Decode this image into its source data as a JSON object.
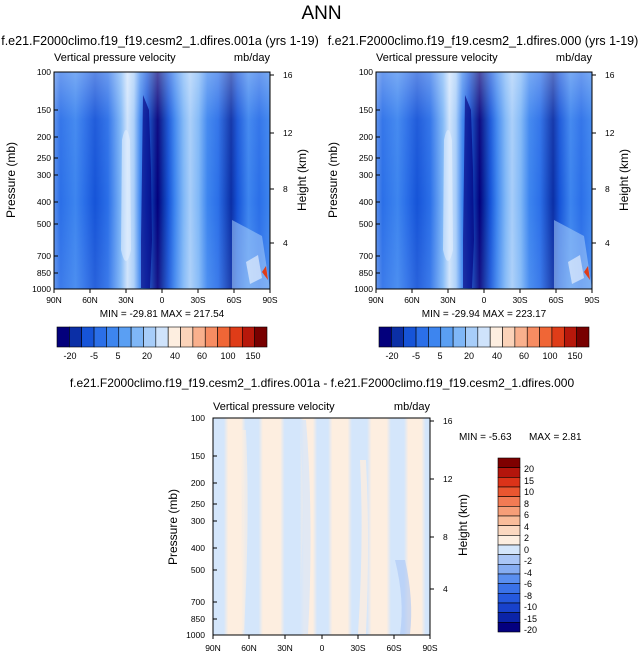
{
  "figure": {
    "title": "ANN"
  },
  "colors": {
    "ramp_top": [
      "#03007c",
      "#0b2fa6",
      "#1654d8",
      "#2b6fe8",
      "#3d85ef",
      "#5a9ff3",
      "#7fb7f7",
      "#a7cdf9",
      "#cfe3fb",
      "#fdeee0",
      "#fbd3b9",
      "#f9b08d",
      "#f78c62",
      "#f06636",
      "#df3c18",
      "#b7180b",
      "#780000"
    ],
    "ramp_diff": [
      "#04007f",
      "#0b24a8",
      "#1842cc",
      "#2559de",
      "#3a72e8",
      "#5a8ff0",
      "#86adf2",
      "#aac6f6",
      "#d4e6fb",
      "#fdeee0",
      "#fbd8c0",
      "#f9bc9a",
      "#f69e78",
      "#f27b54",
      "#ea5630",
      "#db3319",
      "#b3150c",
      "#7e0000"
    ]
  },
  "chart_data": [
    {
      "type": "heatmap",
      "name": "panel-left",
      "title": "f.e21.F2000climo.f19_f19.cesm2_1.dfires.001a (yrs 1-19)",
      "subtitle_left": "Vertical pressure velocity",
      "subtitle_right": "mb/day",
      "ylabel": "Pressure (mb)",
      "y2label": "Height (km)",
      "x_ticks": [
        "90N",
        "60N",
        "30N",
        "0",
        "30S",
        "60S",
        "90S"
      ],
      "y_ticks": [
        100,
        150,
        200,
        250,
        300,
        400,
        500,
        700,
        850,
        1000
      ],
      "y2_ticks": [
        4,
        8,
        12,
        16
      ],
      "min_max_text": "MIN = -29.81   MAX = 217.54",
      "colorbar_labels": [
        "-20",
        "-5",
        "5",
        "20",
        "40",
        "60",
        "100",
        "150"
      ]
    },
    {
      "type": "heatmap",
      "name": "panel-right",
      "title": "f.e21.F2000climo.f19_f19.cesm2_1.dfires.000 (yrs 1-19)",
      "subtitle_left": "Vertical pressure velocity",
      "subtitle_right": "mb/day",
      "ylabel": "Pressure (mb)",
      "y2label": "Height (km)",
      "x_ticks": [
        "90N",
        "60N",
        "30N",
        "0",
        "30S",
        "60S",
        "90S"
      ],
      "y_ticks": [
        100,
        150,
        200,
        250,
        300,
        400,
        500,
        700,
        850,
        1000
      ],
      "y2_ticks": [
        4,
        8,
        12,
        16
      ],
      "min_max_text": "MIN = -29.94   MAX = 223.17",
      "colorbar_labels": [
        "-20",
        "-5",
        "5",
        "20",
        "40",
        "60",
        "100",
        "150"
      ]
    },
    {
      "type": "heatmap",
      "name": "panel-diff",
      "title": "f.e21.F2000climo.f19_f19.cesm2_1.dfires.001a - f.e21.F2000climo.f19_f19.cesm2_1.dfires.000",
      "subtitle_left": "Vertical pressure velocity",
      "subtitle_right": "mb/day",
      "ylabel": "Pressure (mb)",
      "y2label": "Height (km)",
      "x_ticks": [
        "90N",
        "60N",
        "30N",
        "0",
        "30S",
        "60S",
        "90S"
      ],
      "y_ticks": [
        100,
        150,
        200,
        250,
        300,
        400,
        500,
        700,
        850,
        1000
      ],
      "y2_ticks": [
        4,
        8,
        12,
        16
      ],
      "min_text": "MIN =  -5.63",
      "max_text": "MAX =   2.81",
      "colorbar_labels": [
        "20",
        "15",
        "10",
        "8",
        "6",
        "4",
        "2",
        "0",
        "-2",
        "-4",
        "-6",
        "-8",
        "-10",
        "-15",
        "-20"
      ]
    }
  ]
}
